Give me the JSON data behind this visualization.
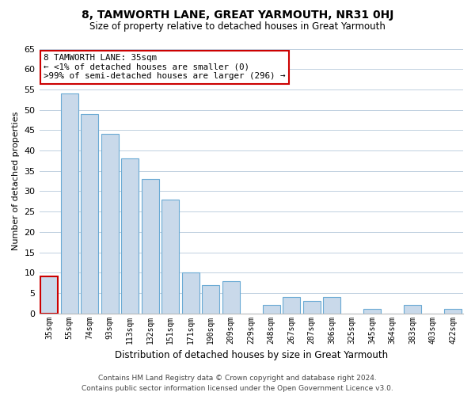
{
  "title": "8, TAMWORTH LANE, GREAT YARMOUTH, NR31 0HJ",
  "subtitle": "Size of property relative to detached houses in Great Yarmouth",
  "xlabel": "Distribution of detached houses by size in Great Yarmouth",
  "ylabel": "Number of detached properties",
  "footer_line1": "Contains HM Land Registry data © Crown copyright and database right 2024.",
  "footer_line2": "Contains public sector information licensed under the Open Government Licence v3.0.",
  "bar_labels": [
    "35sqm",
    "55sqm",
    "74sqm",
    "93sqm",
    "113sqm",
    "132sqm",
    "151sqm",
    "171sqm",
    "190sqm",
    "209sqm",
    "229sqm",
    "248sqm",
    "267sqm",
    "287sqm",
    "306sqm",
    "325sqm",
    "345sqm",
    "364sqm",
    "383sqm",
    "403sqm",
    "422sqm"
  ],
  "bar_values": [
    9,
    54,
    49,
    44,
    38,
    33,
    28,
    10,
    7,
    8,
    0,
    2,
    4,
    3,
    4,
    0,
    1,
    0,
    2,
    0,
    1
  ],
  "bar_color": "#c9d9ea",
  "bar_edge_color": "#6aaad4",
  "highlight_bar_index": 0,
  "highlight_edge_color": "#cc0000",
  "annotation_title": "8 TAMWORTH LANE: 35sqm",
  "annotation_line2": "← <1% of detached houses are smaller (0)",
  "annotation_line3": ">99% of semi-detached houses are larger (296) →",
  "annotation_box_facecolor": "#ffffff",
  "annotation_box_edgecolor": "#cc0000",
  "ylim": [
    0,
    65
  ],
  "yticks": [
    0,
    5,
    10,
    15,
    20,
    25,
    30,
    35,
    40,
    45,
    50,
    55,
    60,
    65
  ],
  "bg_color": "#ffffff",
  "grid_color": "#c0d0e0",
  "title_fontsize": 10,
  "subtitle_fontsize": 8.5,
  "xlabel_fontsize": 8.5,
  "ylabel_fontsize": 8,
  "tick_fontsize": 8,
  "xtick_fontsize": 7,
  "footer_fontsize": 6.5
}
